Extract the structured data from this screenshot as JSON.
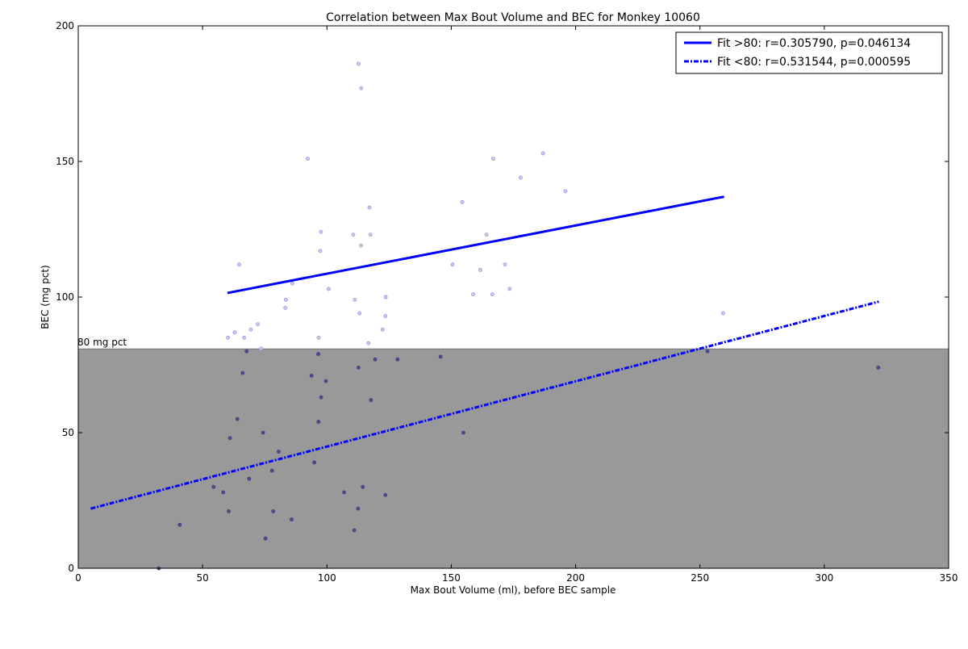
{
  "chart_data": {
    "type": "scatter",
    "title": "Correlation between Max Bout Volume and BEC for Monkey 10060",
    "xlabel": "Max Bout Volume (ml), before BEC sample",
    "ylabel": "BEC (mg pct)",
    "xlim": [
      0,
      350
    ],
    "ylim": [
      0,
      200
    ],
    "x_ticks": [
      0,
      50,
      100,
      150,
      200,
      250,
      300,
      350
    ],
    "y_ticks": [
      0,
      50,
      100,
      150,
      200
    ],
    "grid": false,
    "legend_position": "top-right",
    "threshold": {
      "value": 80,
      "label": "80 mg pct",
      "color": "#999999"
    },
    "points_color": "#4040c0",
    "points": [
      [
        32.4,
        0
      ],
      [
        40.8,
        16
      ],
      [
        54.4,
        30
      ],
      [
        58.3,
        28
      ],
      [
        60.5,
        21
      ],
      [
        61,
        48
      ],
      [
        64,
        55
      ],
      [
        66.1,
        72
      ],
      [
        67.7,
        80
      ],
      [
        68.7,
        33
      ],
      [
        74.3,
        50
      ],
      [
        75.3,
        11
      ],
      [
        77.9,
        36
      ],
      [
        78.4,
        21
      ],
      [
        80.6,
        43
      ],
      [
        85.8,
        18
      ],
      [
        94.9,
        39
      ],
      [
        93.8,
        71
      ],
      [
        96.6,
        54
      ],
      [
        96.5,
        79
      ],
      [
        97.7,
        63
      ],
      [
        99.6,
        69
      ],
      [
        106.9,
        28
      ],
      [
        111,
        14
      ],
      [
        112.5,
        22
      ],
      [
        112.7,
        74
      ],
      [
        114.4,
        30
      ],
      [
        117.7,
        62
      ],
      [
        119.4,
        77
      ],
      [
        123.5,
        27
      ],
      [
        128.4,
        77
      ],
      [
        145.7,
        78
      ],
      [
        154.9,
        50
      ],
      [
        253,
        80
      ],
      [
        321.7,
        74
      ],
      [
        60.2,
        85
      ],
      [
        62.9,
        87
      ],
      [
        64.7,
        112
      ],
      [
        66.7,
        85
      ],
      [
        69.4,
        88
      ],
      [
        72.2,
        90
      ],
      [
        73.5,
        81
      ],
      [
        83.5,
        99
      ],
      [
        83.3,
        96
      ],
      [
        86.1,
        105
      ],
      [
        92.3,
        151
      ],
      [
        96.7,
        85
      ],
      [
        97.3,
        117
      ],
      [
        97.6,
        124
      ],
      [
        100.7,
        103
      ],
      [
        110.6,
        123
      ],
      [
        111.2,
        99
      ],
      [
        112.7,
        186
      ],
      [
        113.1,
        94
      ],
      [
        113.7,
        119
      ],
      [
        113.8,
        177
      ],
      [
        116.7,
        83
      ],
      [
        117.1,
        133
      ],
      [
        117.5,
        123
      ],
      [
        122.4,
        88
      ],
      [
        123.6,
        100
      ],
      [
        123.5,
        93
      ],
      [
        150.5,
        112
      ],
      [
        154.4,
        135
      ],
      [
        158.8,
        101
      ],
      [
        161.7,
        110
      ],
      [
        164.2,
        123
      ],
      [
        166.5,
        101
      ],
      [
        166.9,
        151
      ],
      [
        171.6,
        112
      ],
      [
        173.5,
        103
      ],
      [
        177.9,
        144
      ],
      [
        186.9,
        153
      ],
      [
        195.9,
        139
      ],
      [
        259.3,
        94
      ]
    ],
    "series": [
      {
        "name": "Fit >80: r=0.305790, p=0.046134",
        "style": "solid",
        "color": "#0000ff",
        "x": [
          60,
          259.7
        ],
        "y": [
          101.5,
          137
        ]
      },
      {
        "name": "Fit <80: r=0.531544, p=0.000595",
        "style": "dashdot",
        "color": "#0000ff",
        "x": [
          5,
          321.9
        ],
        "y": [
          22,
          98.3
        ]
      }
    ]
  }
}
